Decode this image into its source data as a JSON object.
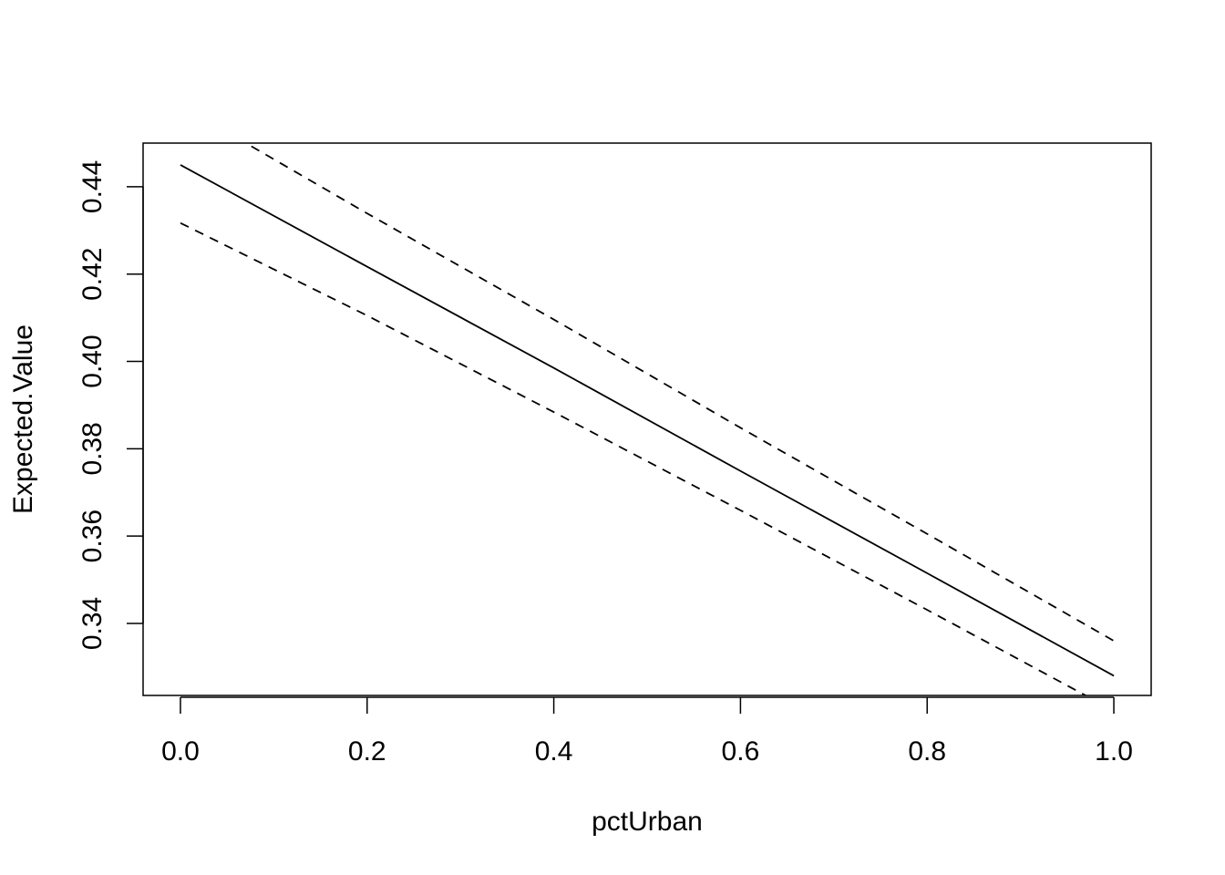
{
  "chart_data": {
    "type": "line",
    "xlabel": "pctUrban",
    "ylabel": "Expected.Value",
    "xlim": [
      -0.04,
      1.04
    ],
    "ylim": [
      0.3235,
      0.45
    ],
    "xticks": [
      0.0,
      0.2,
      0.4,
      0.6,
      0.8,
      1.0
    ],
    "xtick_labels": [
      "0.0",
      "0.2",
      "0.4",
      "0.6",
      "0.8",
      "1.0"
    ],
    "yticks": [
      0.34,
      0.36,
      0.38,
      0.4,
      0.42,
      0.44
    ],
    "ytick_labels": [
      "0.34",
      "0.36",
      "0.38",
      "0.40",
      "0.42",
      "0.44"
    ],
    "grid": false,
    "series": [
      {
        "style": "solid",
        "color": "#000000",
        "x": [
          0.0,
          0.2,
          0.4,
          0.6,
          0.8,
          1.0
        ],
        "y": [
          0.445,
          0.4217,
          0.3985,
          0.3749,
          0.3515,
          0.328
        ]
      },
      {
        "style": "dashed",
        "color": "#000000",
        "x": [
          0.0,
          0.2,
          0.4,
          0.6,
          0.8,
          1.0
        ],
        "y": [
          0.4587,
          0.4339,
          0.4096,
          0.3848,
          0.3605,
          0.336
        ]
      },
      {
        "style": "dashed",
        "color": "#000000",
        "x": [
          0.0,
          0.2,
          0.4,
          0.6,
          0.8,
          1.0
        ],
        "y": [
          0.4317,
          0.4105,
          0.3884,
          0.3659,
          0.3431,
          0.32
        ]
      }
    ]
  }
}
